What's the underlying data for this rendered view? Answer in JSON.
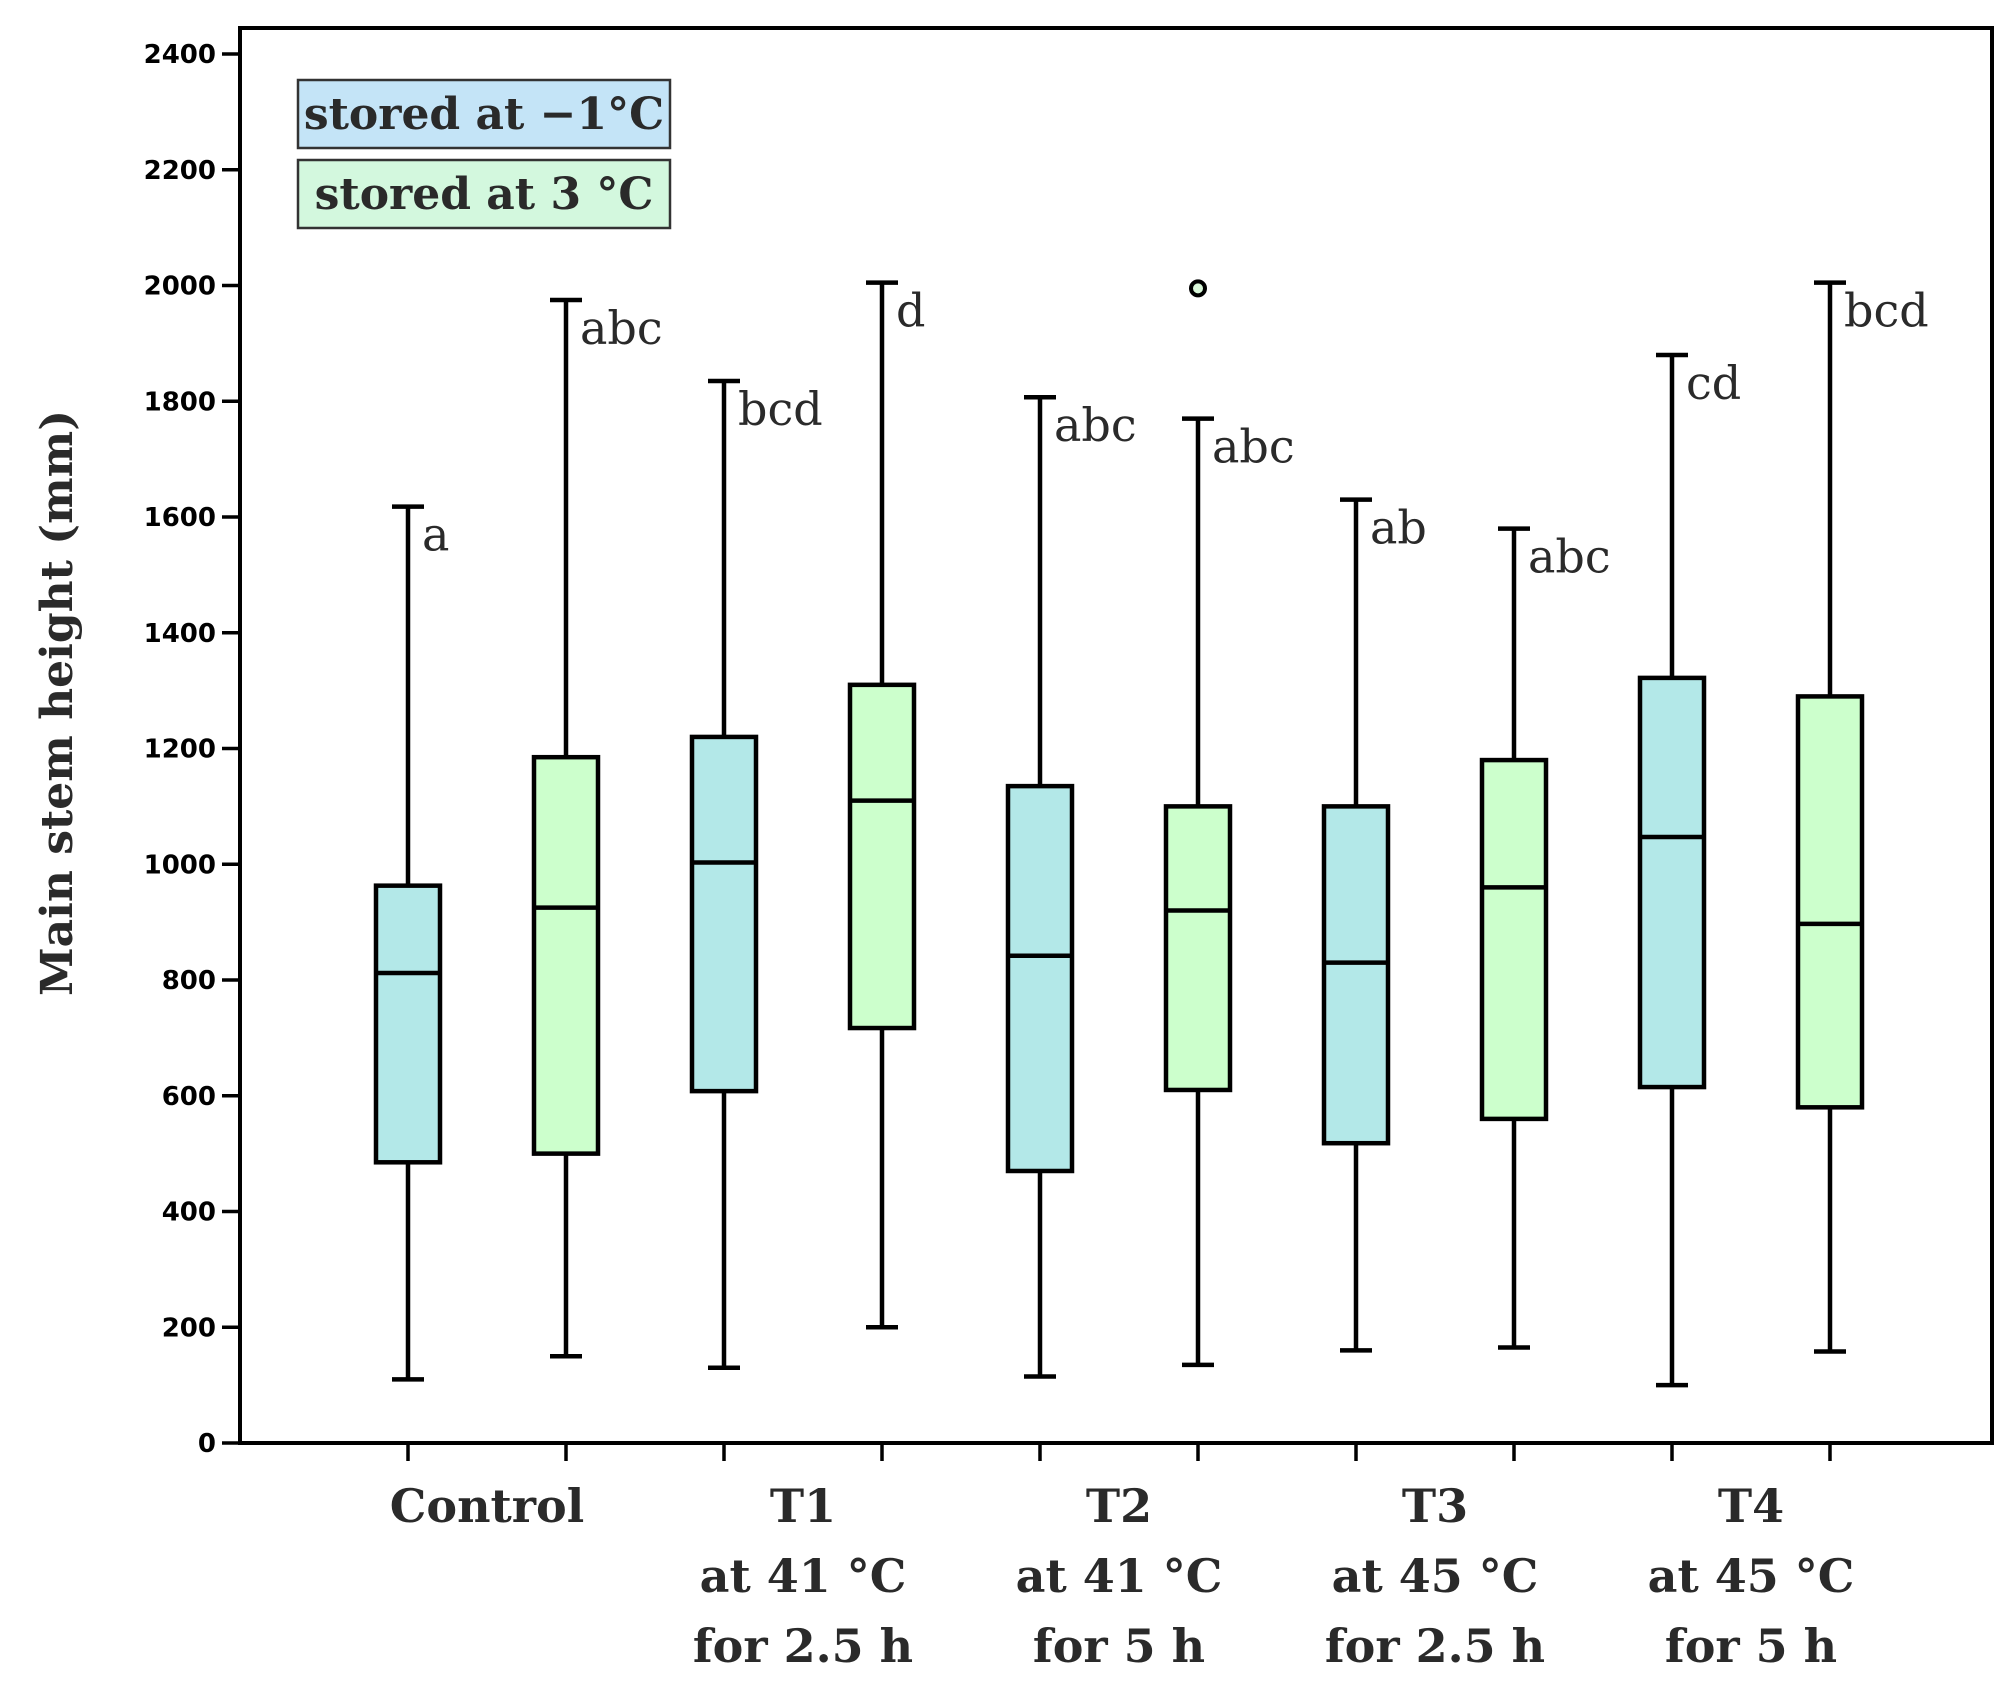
{
  "chart_data": {
    "type": "boxplot",
    "title": "",
    "xlabel": "",
    "ylabel": "Main stem height (mm)",
    "ylim": [
      0,
      2400
    ],
    "yticks": [
      0,
      200,
      400,
      600,
      800,
      1000,
      1200,
      1400,
      1600,
      1800,
      2000,
      2200,
      2400
    ],
    "grid": false,
    "legend_position": "top-left",
    "series_styles": [
      {
        "name": "stored at −1°C",
        "color": "#b3e8e8",
        "legend_color": "#c4e4f7"
      },
      {
        "name": "stored at 3 °C",
        "color": "#ccffcc",
        "legend_color": "#d3f8de"
      }
    ],
    "categories": [
      {
        "lines": [
          "Control"
        ]
      },
      {
        "lines": [
          "T1",
          "at 41 °C",
          "for 2.5 h"
        ]
      },
      {
        "lines": [
          "T2",
          "at 41 °C",
          "for 5 h"
        ]
      },
      {
        "lines": [
          "T3",
          "at 45 °C",
          "for 2.5 h"
        ]
      },
      {
        "lines": [
          "T4",
          "at 45 °C",
          "for 5 h"
        ]
      }
    ],
    "boxes": [
      {
        "category": "Control",
        "series": 0,
        "min": 110,
        "q1": 485,
        "median": 812,
        "q3": 963,
        "max": 1618,
        "outliers": [],
        "letter": "a"
      },
      {
        "category": "Control",
        "series": 1,
        "min": 150,
        "q1": 500,
        "median": 925,
        "q3": 1185,
        "max": 1975,
        "outliers": [],
        "letter": "abc"
      },
      {
        "category": "T1",
        "series": 0,
        "min": 130,
        "q1": 608,
        "median": 1003,
        "q3": 1220,
        "max": 1835,
        "outliers": [],
        "letter": "bcd"
      },
      {
        "category": "T1",
        "series": 1,
        "min": 200,
        "q1": 717,
        "median": 1110,
        "q3": 1310,
        "max": 2005,
        "outliers": [],
        "letter": "d"
      },
      {
        "category": "T2",
        "series": 0,
        "min": 115,
        "q1": 470,
        "median": 842,
        "q3": 1135,
        "max": 1807,
        "outliers": [],
        "letter": "abc"
      },
      {
        "category": "T2",
        "series": 1,
        "min": 135,
        "q1": 610,
        "median": 920,
        "q3": 1100,
        "max": 1770,
        "outliers": [
          1995
        ],
        "letter": "abc"
      },
      {
        "category": "T3",
        "series": 0,
        "min": 160,
        "q1": 518,
        "median": 830,
        "q3": 1100,
        "max": 1630,
        "outliers": [],
        "letter": "ab"
      },
      {
        "category": "T3",
        "series": 1,
        "min": 165,
        "q1": 560,
        "median": 960,
        "q3": 1180,
        "max": 1580,
        "outliers": [],
        "letter": "abc"
      },
      {
        "category": "T4",
        "series": 0,
        "min": 100,
        "q1": 615,
        "median": 1047,
        "q3": 1322,
        "max": 1880,
        "outliers": [],
        "letter": "cd"
      },
      {
        "category": "T4",
        "series": 1,
        "min": 158,
        "q1": 580,
        "median": 897,
        "q3": 1290,
        "max": 2005,
        "outliers": [],
        "letter": "bcd"
      }
    ]
  }
}
